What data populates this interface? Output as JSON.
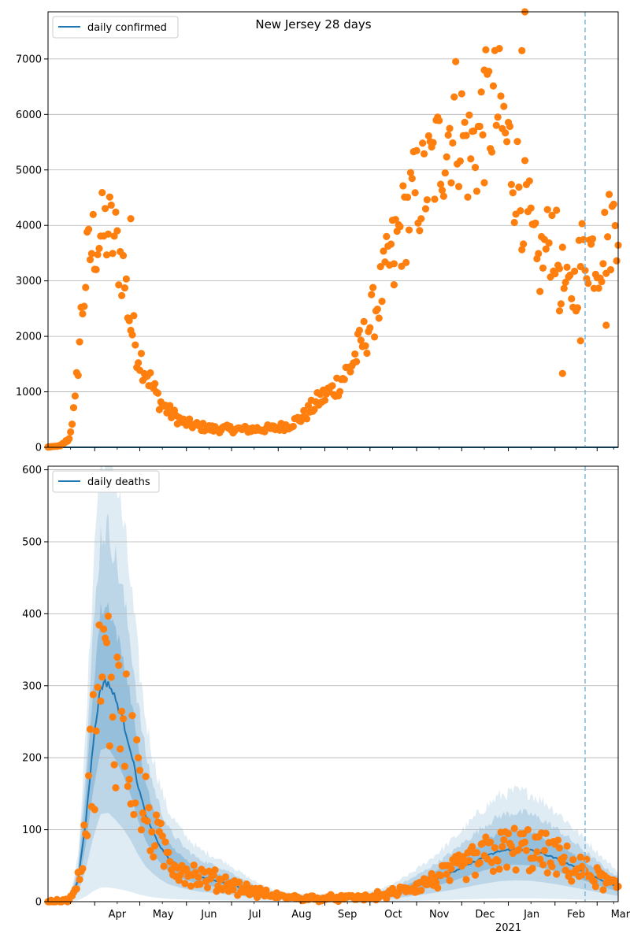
{
  "chart_data": [
    {
      "type": "scatter",
      "title": "New Jersey 28 days",
      "legend": {
        "label": "daily confirmed",
        "position": "top-left"
      },
      "xlabel": "",
      "ylabel": "",
      "x_start": "2020-03-01",
      "ylim": [
        0,
        7850
      ],
      "yticks": [
        0,
        1000,
        2000,
        3000,
        4000,
        5000,
        6000,
        7000
      ],
      "grid": true,
      "vline_day": 357,
      "model_line": {
        "name": "daily confirmed",
        "value": 0
      },
      "observed_anchor_days": [
        0,
        8,
        14,
        18,
        22,
        26,
        30,
        35,
        40,
        45,
        50,
        55,
        60,
        65,
        70,
        75,
        80,
        90,
        100,
        110,
        120,
        130,
        140,
        150,
        160,
        170,
        180,
        190,
        200,
        210,
        220,
        230,
        240,
        245,
        250,
        255,
        260,
        265,
        270,
        275,
        280,
        285,
        290,
        295,
        300,
        305,
        310,
        315,
        320,
        325,
        330,
        335,
        340,
        345,
        350,
        355,
        360,
        365,
        370,
        375,
        379
      ],
      "observed_anchor_values": [
        5,
        25,
        150,
        800,
        2300,
        3300,
        3700,
        3800,
        3950,
        3700,
        3200,
        2200,
        1700,
        1400,
        1050,
        800,
        650,
        450,
        380,
        330,
        330,
        320,
        330,
        340,
        400,
        560,
        850,
        1050,
        1400,
        1950,
        2700,
        3600,
        4300,
        4600,
        4700,
        5000,
        5300,
        5600,
        6000,
        5700,
        5300,
        5500,
        5900,
        6100,
        6000,
        5500,
        5000,
        4500,
        4000,
        3200,
        3500,
        3900,
        3300,
        2700,
        2900,
        3500,
        3600,
        3400,
        3700,
        4000,
        4300
      ],
      "outliers": [
        [
          55,
          4120
        ],
        [
          230,
          2930
        ],
        [
          290,
          6800
        ],
        [
          315,
          7150
        ],
        [
          317,
          7850
        ],
        [
          342,
          1330
        ],
        [
          354,
          1920
        ],
        [
          340,
          2460
        ],
        [
          371,
          2200
        ]
      ]
    },
    {
      "type": "line",
      "title": "",
      "legend": {
        "label": "daily deaths",
        "position": "top-left"
      },
      "xlabel": "",
      "ylabel": "",
      "x_start": "2020-03-01",
      "ylim": [
        0,
        605
      ],
      "yticks": [
        0,
        100,
        200,
        300,
        400,
        500,
        600
      ],
      "grid": true,
      "vline_day": 357,
      "xticks": [
        {
          "day": 31,
          "label": "Apr"
        },
        {
          "day": 61,
          "label": "May"
        },
        {
          "day": 92,
          "label": "Jun"
        },
        {
          "day": 122,
          "label": "Jul"
        },
        {
          "day": 153,
          "label": "Aug"
        },
        {
          "day": 184,
          "label": "Sep"
        },
        {
          "day": 214,
          "label": "Oct"
        },
        {
          "day": 245,
          "label": "Nov"
        },
        {
          "day": 275,
          "label": "Dec"
        },
        {
          "day": 306,
          "label": "Jan"
        },
        {
          "day": 337,
          "label": "Feb"
        },
        {
          "day": 365,
          "label": "Mar"
        }
      ],
      "year_label": {
        "day": 306,
        "text": "2021"
      },
      "median_line": {
        "days": [
          0,
          10,
          15,
          20,
          25,
          30,
          35,
          40,
          45,
          50,
          55,
          60,
          65,
          70,
          75,
          80,
          90,
          100,
          110,
          120,
          130,
          140,
          150,
          160,
          170,
          180,
          190,
          200,
          210,
          220,
          230,
          240,
          250,
          260,
          270,
          280,
          290,
          300,
          310,
          320,
          330,
          340,
          350,
          360,
          370,
          379
        ],
        "values": [
          0,
          0,
          5,
          30,
          110,
          220,
          300,
          305,
          280,
          250,
          210,
          160,
          120,
          95,
          75,
          60,
          45,
          35,
          30,
          25,
          18,
          12,
          8,
          6,
          5,
          5,
          5,
          5,
          6,
          8,
          12,
          18,
          25,
          33,
          42,
          52,
          62,
          70,
          73,
          72,
          66,
          58,
          48,
          38,
          28,
          20
        ]
      },
      "band_half_widths": [
        0.35,
        0.7,
        1.1
      ],
      "observed_points": "median scattered ±45%"
    }
  ]
}
